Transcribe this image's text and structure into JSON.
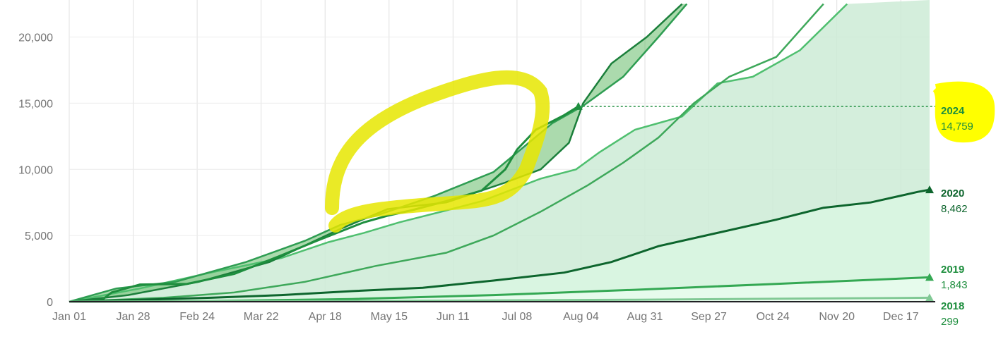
{
  "chart_data": {
    "type": "area",
    "x_ticks": [
      "Jan 01",
      "Jan 28",
      "Feb 24",
      "Mar 22",
      "Apr 18",
      "May 15",
      "Jun 11",
      "Jul 08",
      "Aug 04",
      "Aug 31",
      "Sep 27",
      "Oct 24",
      "Nov 20",
      "Dec 17"
    ],
    "y_ticks": [
      "0",
      "5,000",
      "10,000",
      "15,000",
      "20,000"
    ],
    "ylim": [
      0,
      22000
    ],
    "xlim_days": [
      0,
      365
    ],
    "grid": true,
    "reference_line": {
      "series": "2024",
      "value": 14759
    },
    "series": [
      {
        "name": "2024",
        "end_label": "14,759",
        "color": "#1e8e3e",
        "points": [
          [
            0,
            0
          ],
          [
            14,
            150
          ],
          [
            18,
            700
          ],
          [
            30,
            1300
          ],
          [
            50,
            1350
          ],
          [
            70,
            2100
          ],
          [
            90,
            3500
          ],
          [
            105,
            4600
          ],
          [
            125,
            6000
          ],
          [
            135,
            6500
          ],
          [
            145,
            6900
          ],
          [
            160,
            7600
          ],
          [
            175,
            8400
          ],
          [
            185,
            10000
          ],
          [
            190,
            11500
          ],
          [
            198,
            13000
          ],
          [
            210,
            14100
          ],
          [
            216,
            14759
          ]
        ]
      },
      {
        "name": "2020",
        "end_label": "8,462",
        "color": "#0d652d",
        "points": [
          [
            0,
            0
          ],
          [
            30,
            150
          ],
          [
            60,
            300
          ],
          [
            90,
            500
          ],
          [
            120,
            800
          ],
          [
            150,
            1050
          ],
          [
            180,
            1600
          ],
          [
            210,
            2200
          ],
          [
            230,
            3000
          ],
          [
            250,
            4200
          ],
          [
            270,
            5000
          ],
          [
            300,
            6200
          ],
          [
            320,
            7100
          ],
          [
            340,
            7500
          ],
          [
            360,
            8300
          ],
          [
            365,
            8462
          ]
        ]
      },
      {
        "name": "2019",
        "end_label": "1,843",
        "color": "#34a853",
        "points": [
          [
            0,
            0
          ],
          [
            60,
            50
          ],
          [
            120,
            200
          ],
          [
            180,
            500
          ],
          [
            240,
            900
          ],
          [
            300,
            1350
          ],
          [
            365,
            1843
          ]
        ]
      },
      {
        "name": "2018",
        "end_label": "299",
        "color": "#81c995",
        "points": [
          [
            0,
            0
          ],
          [
            120,
            50
          ],
          [
            240,
            150
          ],
          [
            365,
            299
          ]
        ]
      }
    ],
    "other_years": [
      [
        [
          0,
          0
        ],
        [
          30,
          1000
        ],
        [
          60,
          2200
        ],
        [
          90,
          3300
        ],
        [
          110,
          4500
        ],
        [
          125,
          5200
        ],
        [
          140,
          6000
        ],
        [
          160,
          6900
        ],
        [
          175,
          7600
        ],
        [
          200,
          9300
        ],
        [
          215,
          10000
        ],
        [
          225,
          11300
        ],
        [
          240,
          13000
        ],
        [
          260,
          14000
        ],
        [
          275,
          16500
        ],
        [
          290,
          17000
        ],
        [
          310,
          19000
        ],
        [
          330,
          22500
        ]
      ],
      [
        [
          0,
          0
        ],
        [
          40,
          300
        ],
        [
          70,
          700
        ],
        [
          100,
          1500
        ],
        [
          130,
          2700
        ],
        [
          160,
          3700
        ],
        [
          180,
          5000
        ],
        [
          200,
          6800
        ],
        [
          220,
          8800
        ],
        [
          235,
          10500
        ],
        [
          250,
          12400
        ],
        [
          265,
          15000
        ],
        [
          280,
          17000
        ],
        [
          300,
          18500
        ],
        [
          320,
          22500
        ]
      ],
      [
        [
          0,
          0
        ],
        [
          25,
          500
        ],
        [
          55,
          1500
        ],
        [
          85,
          3000
        ],
        [
          115,
          5500
        ],
        [
          135,
          7000
        ],
        [
          160,
          7500
        ],
        [
          185,
          9000
        ],
        [
          200,
          10000
        ],
        [
          212,
          12000
        ],
        [
          218,
          15000
        ],
        [
          230,
          18000
        ],
        [
          245,
          20000
        ],
        [
          260,
          22500
        ]
      ],
      [
        [
          0,
          0
        ],
        [
          20,
          1000
        ],
        [
          45,
          1500
        ],
        [
          75,
          3000
        ],
        [
          100,
          4600
        ],
        [
          115,
          5800
        ],
        [
          130,
          6500
        ],
        [
          155,
          8000
        ],
        [
          180,
          9800
        ],
        [
          205,
          13500
        ],
        [
          218,
          14800
        ],
        [
          235,
          17000
        ],
        [
          250,
          20000
        ],
        [
          262,
          22500
        ]
      ]
    ]
  }
}
